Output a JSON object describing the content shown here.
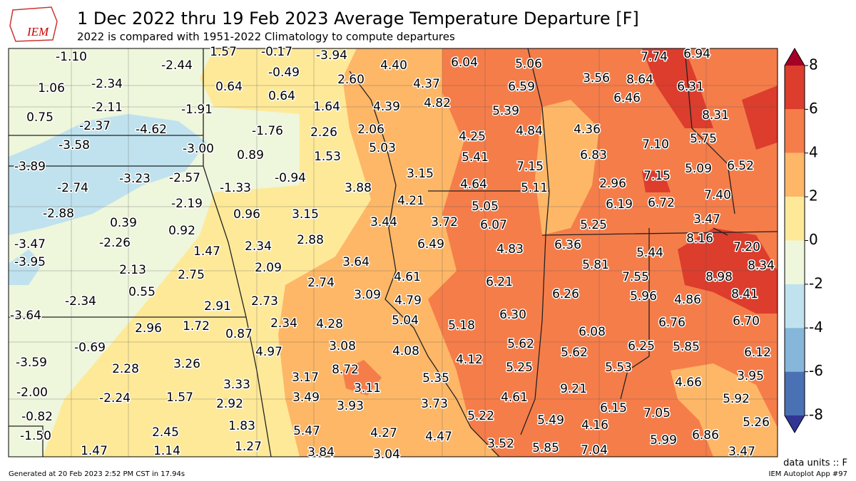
{
  "header": {
    "logo": "IEM",
    "title": "1 Dec 2022 thru 19 Feb 2023 Average Temperature Departure [F]",
    "subtitle": "2022 is compared with 1951-2022 Climatology to compute departures"
  },
  "stations": [
    "-1.10",
    "-2.44",
    "1.57",
    "-0.17",
    "-3.94",
    "4.40",
    "6.04",
    "5.06",
    "7.74",
    "6.94",
    "1.06",
    "-2.34",
    "0.64",
    "-0.49",
    "2.60",
    "4.37",
    "6.59",
    "3.56",
    "8.64",
    "6.31",
    "-2.11",
    "0.64",
    "1.64",
    "4.39",
    "4.82",
    "5.39",
    "6.46",
    "8.31",
    "0.75",
    "-2.37",
    "-4.62",
    "-1.91",
    "-1.76",
    "2.26",
    "2.06",
    "4.25",
    "4.84",
    "4.36",
    "5.75",
    "7.10",
    "-3.58",
    "-3.00",
    "0.89",
    "1.53",
    "5.03",
    "5.41",
    "6.83",
    "7.15",
    "5.09",
    "6.52",
    "-3.89",
    "-3.23",
    "-2.57",
    "-0.94",
    "3.15",
    "4.64",
    "5.11",
    "2.96",
    "7.15",
    "-2.74",
    "-1.33",
    "3.88",
    "4.21",
    "7.40",
    "-2.19",
    "6.19",
    "6.72",
    "5.05",
    "-2.88",
    "0.39",
    "0.96",
    "3.15",
    "3.44",
    "3.72",
    "6.07",
    "3.47",
    "5.25",
    "-3.47",
    "-2.26",
    "0.92",
    "2.34",
    "2.88",
    "6.49",
    "4.83",
    "6.36",
    "8.16",
    "7.20",
    "5.44",
    "-3.95",
    "1.47",
    "2.09",
    "3.64",
    "5.81",
    "7.55",
    "8.98",
    "8.34",
    "2.13",
    "2.75",
    "4.61",
    "6.21",
    "2.74",
    "0.55",
    "-2.34",
    "3.09",
    "4.79",
    "6.26",
    "5.96",
    "4.86",
    "8.41",
    "-3.64",
    "2.91",
    "2.73",
    "5.04",
    "6.30",
    "2.96",
    "1.72",
    "0.87",
    "2.34",
    "4.28",
    "5.18",
    "6.76",
    "6.70",
    "6.08",
    "-0.69",
    "3.08",
    "4.97",
    "4.08",
    "5.62",
    "5.62",
    "6.25",
    "5.85",
    "6.12",
    "-3.59",
    "2.28",
    "3.26",
    "4.12",
    "5.25",
    "5.53",
    "8.72",
    "3.95",
    "3.17",
    "5.35",
    "3.33",
    "3.11",
    "4.66",
    "9.21",
    "-2.00",
    "-2.24",
    "1.57",
    "3.49",
    "2.92",
    "3.93",
    "3.73",
    "4.61",
    "5.92",
    "6.15",
    "-0.82",
    "5.22",
    "7.05",
    "5.49",
    "4.16",
    "5.26",
    "-1.50",
    "2.45",
    "1.83",
    "5.47",
    "4.27",
    "4.47",
    "5.99",
    "6.86",
    "1.47",
    "1.14",
    "1.27",
    "3.84",
    "3.04",
    "3.52",
    "5.85",
    "7.04",
    "3.47"
  ],
  "colorbar": {
    "ticks": [
      8,
      6,
      4,
      2,
      0,
      -2,
      -4,
      -6,
      -8
    ],
    "colors": [
      "#dc3d2d",
      "#f57d4a",
      "#fdb767",
      "#fee999",
      "#eef6dc",
      "#bfe2ee",
      "#86b6d9",
      "#4a71b3"
    ],
    "over": "#a50026",
    "under": "#313695"
  },
  "footer": {
    "units": "data units :: F",
    "generated": "Generated at 20 Feb 2023 2:52 PM CST in 17.94s",
    "app": "IEM Autoplot App #97"
  }
}
